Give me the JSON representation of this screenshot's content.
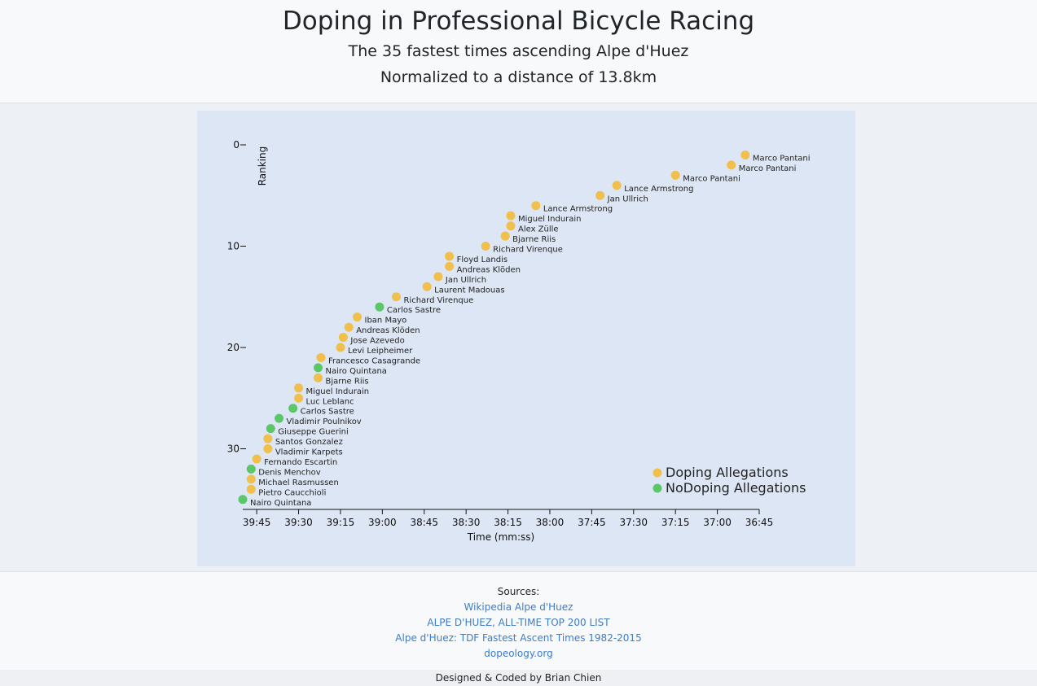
{
  "header": {
    "title": "Doping in Professional Bicycle Racing",
    "subtitle_1": "The 35 fastest times ascending Alpe d'Huez",
    "subtitle_2": "Normalized to a distance of 13.8km"
  },
  "colors": {
    "doping": "#f0bf4c",
    "no_doping": "#5bc769",
    "panel_bg": "#dde6f4"
  },
  "chart_data": {
    "type": "scatter",
    "xlabel": "Time (mm:ss)",
    "ylabel": "Ranking",
    "x_tick_labels": [
      "39:45",
      "39:30",
      "39:15",
      "39:00",
      "38:45",
      "38:30",
      "38:15",
      "38:00",
      "37:45",
      "37:30",
      "37:15",
      "37:00",
      "36:45"
    ],
    "y_tick_labels": [
      "0",
      "10",
      "20",
      "30"
    ],
    "x_unit": "time mm:ss (axis reversed, faster to the right)",
    "xlim": [
      "39:50",
      "36:45"
    ],
    "ylim": [
      0,
      35
    ],
    "legend": [
      {
        "label": "Doping Allegations",
        "key": "doping"
      },
      {
        "label": "NoDoping Allegations",
        "key": "no_doping"
      }
    ],
    "legend_position": "bottom-right",
    "points": [
      {
        "rank": 1,
        "time": "36:50",
        "name": "Marco Pantani",
        "doping": true
      },
      {
        "rank": 2,
        "time": "36:55",
        "name": "Marco Pantani",
        "doping": true
      },
      {
        "rank": 3,
        "time": "37:15",
        "name": "Marco Pantani",
        "doping": true
      },
      {
        "rank": 4,
        "time": "37:36",
        "name": "Lance Armstrong",
        "doping": true
      },
      {
        "rank": 5,
        "time": "37:42",
        "name": "Jan Ullrich",
        "doping": true
      },
      {
        "rank": 6,
        "time": "38:05",
        "name": "Lance Armstrong",
        "doping": true
      },
      {
        "rank": 7,
        "time": "38:14",
        "name": "Miguel Indurain",
        "doping": true
      },
      {
        "rank": 8,
        "time": "38:14",
        "name": "Alex Zülle",
        "doping": true
      },
      {
        "rank": 9,
        "time": "38:16",
        "name": "Bjarne Riis",
        "doping": true
      },
      {
        "rank": 10,
        "time": "38:23",
        "name": "Richard Virenque",
        "doping": true
      },
      {
        "rank": 11,
        "time": "38:36",
        "name": "Floyd Landis",
        "doping": true
      },
      {
        "rank": 12,
        "time": "38:36",
        "name": "Andreas Klöden",
        "doping": true
      },
      {
        "rank": 13,
        "time": "38:40",
        "name": "Jan Ullrich",
        "doping": true
      },
      {
        "rank": 14,
        "time": "38:44",
        "name": "Laurent Madouas",
        "doping": true
      },
      {
        "rank": 15,
        "time": "38:55",
        "name": "Richard Virenque",
        "doping": true
      },
      {
        "rank": 16,
        "time": "39:01",
        "name": "Carlos Sastre",
        "doping": false
      },
      {
        "rank": 17,
        "time": "39:09",
        "name": "Iban Mayo",
        "doping": true
      },
      {
        "rank": 18,
        "time": "39:12",
        "name": "Andreas Klöden",
        "doping": true
      },
      {
        "rank": 19,
        "time": "39:14",
        "name": "Jose Azevedo",
        "doping": true
      },
      {
        "rank": 20,
        "time": "39:15",
        "name": "Levi Leipheimer",
        "doping": true
      },
      {
        "rank": 21,
        "time": "39:22",
        "name": "Francesco Casagrande",
        "doping": true
      },
      {
        "rank": 22,
        "time": "39:23",
        "name": "Nairo Quintana",
        "doping": false
      },
      {
        "rank": 23,
        "time": "39:23",
        "name": "Bjarne Riis",
        "doping": true
      },
      {
        "rank": 24,
        "time": "39:30",
        "name": "Miguel Indurain",
        "doping": true
      },
      {
        "rank": 25,
        "time": "39:30",
        "name": "Luc Leblanc",
        "doping": true
      },
      {
        "rank": 26,
        "time": "39:32",
        "name": "Carlos Sastre",
        "doping": false
      },
      {
        "rank": 27,
        "time": "39:37",
        "name": "Vladimir Poulnikov",
        "doping": false
      },
      {
        "rank": 28,
        "time": "39:40",
        "name": "Giuseppe Guerini",
        "doping": false
      },
      {
        "rank": 29,
        "time": "39:41",
        "name": "Santos Gonzalez",
        "doping": true
      },
      {
        "rank": 30,
        "time": "39:41",
        "name": "Vladimir Karpets",
        "doping": true
      },
      {
        "rank": 31,
        "time": "39:45",
        "name": "Fernando Escartin",
        "doping": true
      },
      {
        "rank": 32,
        "time": "39:47",
        "name": "Denis Menchov",
        "doping": false
      },
      {
        "rank": 33,
        "time": "39:47",
        "name": "Michael Rasmussen",
        "doping": true
      },
      {
        "rank": 34,
        "time": "39:47",
        "name": "Pietro Caucchioli",
        "doping": true
      },
      {
        "rank": 35,
        "time": "39:50",
        "name": "Nairo Quintana",
        "doping": false
      }
    ]
  },
  "sources": {
    "title": "Sources:",
    "links": [
      "Wikipedia Alpe d'Huez",
      "ALPE D'HUEZ, ALL-TIME TOP 200 LIST",
      "Alpe d'Huez: TDF Fastest Ascent Times 1982-2015",
      "dopeology.org"
    ]
  },
  "footer": {
    "credit": "Designed & Coded by Brian Chien"
  }
}
